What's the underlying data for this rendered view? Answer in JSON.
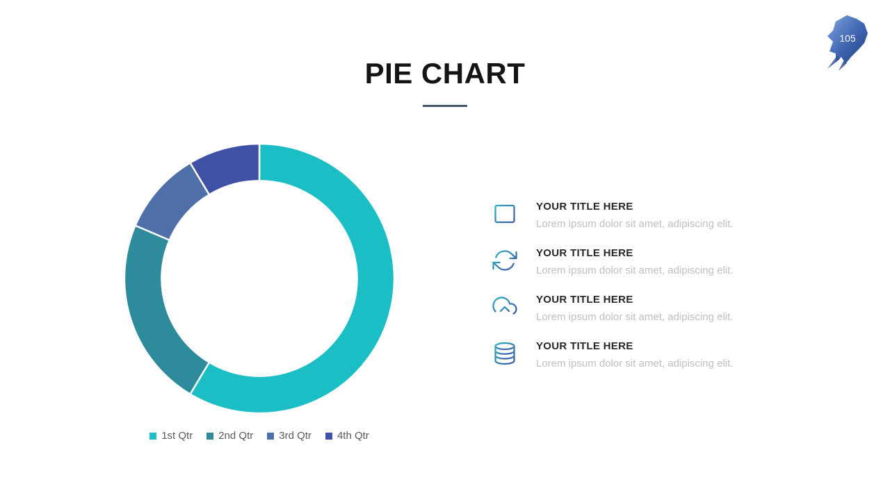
{
  "slide": {
    "title": "PIE CHART",
    "page_number": "105"
  },
  "chart_data": {
    "type": "pie",
    "donut": true,
    "title": "",
    "categories": [
      "1st Qtr",
      "2nd Qtr",
      "3rd Qtr",
      "4th Qtr"
    ],
    "values": [
      8.2,
      3.2,
      1.4,
      1.2
    ],
    "colors": [
      "#1abec4",
      "#2e8b9b",
      "#4e6fa8",
      "#3f51a5"
    ],
    "legend_position": "bottom"
  },
  "accents": {
    "underline": "#44546a",
    "badge_blue": "#3e63b0",
    "icon_teal": "#2bafc0",
    "icon_blue": "#3e56a6"
  },
  "features": [
    {
      "icon": "browser-window-icon",
      "title": "YOUR TITLE HERE",
      "description": "Lorem ipsum dolor sit amet, adipiscing elit."
    },
    {
      "icon": "sync-icon",
      "title": "YOUR TITLE HERE",
      "description": "Lorem ipsum dolor sit amet, adipiscing elit."
    },
    {
      "icon": "cloud-upload-icon",
      "title": "YOUR TITLE HERE",
      "description": "Lorem ipsum dolor sit amet, adipiscing elit."
    },
    {
      "icon": "database-icon",
      "title": "YOUR TITLE HERE",
      "description": "Lorem ipsum dolor sit amet, adipiscing elit."
    }
  ]
}
